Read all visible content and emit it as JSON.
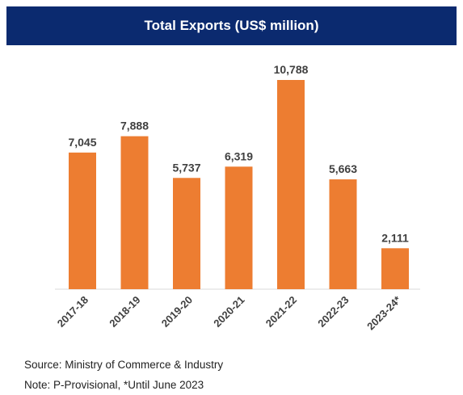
{
  "title": "Total Exports (US$ million)",
  "footer": {
    "source": "Source: Ministry of Commerce & Industry",
    "note": "Note: P-Provisional, *Until June 2023"
  },
  "colors": {
    "header_bg": "#0b2a6f",
    "bar": "#ed7d31",
    "axis": "#d9d9d9",
    "label": "#404040"
  },
  "chart_data": {
    "type": "bar",
    "title": "Total Exports (US$ million)",
    "categories": [
      "2017-18",
      "2018-19",
      "2019-20",
      "2020-21",
      "2021-22",
      "2022-23",
      "2023-24*"
    ],
    "values": [
      7045,
      7888,
      5737,
      6319,
      10788,
      5663,
      2111
    ],
    "value_labels": [
      "7,045",
      "7,888",
      "5,737",
      "6,319",
      "10,788",
      "5,663",
      "2,111"
    ],
    "xlabel": "",
    "ylabel": "",
    "ylim": [
      0,
      10788
    ],
    "grid": false,
    "legend": "none"
  }
}
